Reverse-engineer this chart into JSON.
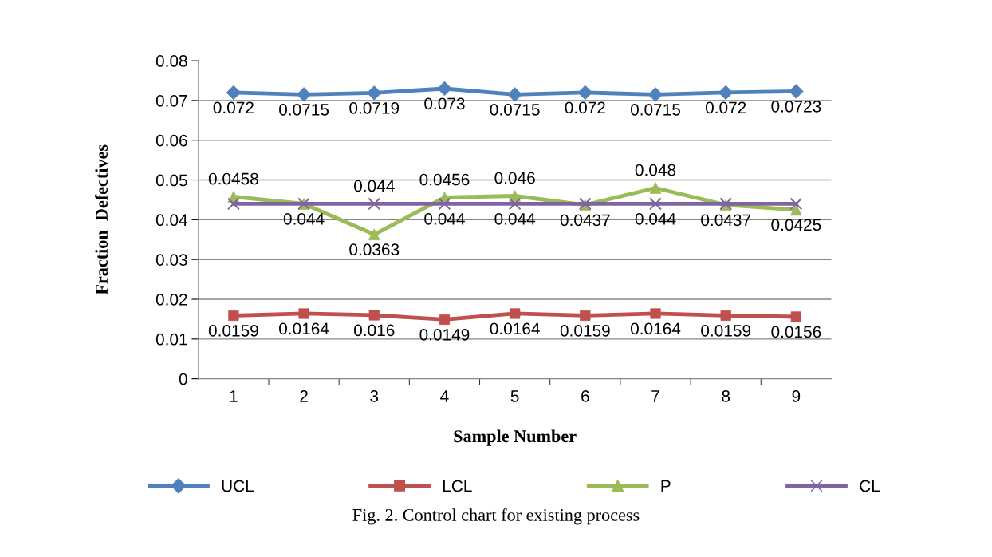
{
  "chart_data": {
    "type": "line",
    "xlabel": "Sample Number",
    "ylabel": "Fraction  Defectives",
    "categories": [
      "1",
      "2",
      "3",
      "4",
      "5",
      "6",
      "7",
      "8",
      "9"
    ],
    "ylim": [
      0,
      0.08
    ],
    "yticks": [
      0,
      0.01,
      0.02,
      0.03,
      0.04,
      0.05,
      0.06,
      0.07,
      0.08
    ],
    "grid": "y",
    "legend": "bottom",
    "series": [
      {
        "name": "UCL",
        "color": "#4f81bd",
        "marker": "diamond",
        "values": [
          0.072,
          0.0715,
          0.0719,
          0.073,
          0.0715,
          0.072,
          0.0715,
          0.072,
          0.0723
        ],
        "value_labels": [
          "0.072",
          "0.0715",
          "0.0719",
          "0.073",
          "0.0715",
          "0.072",
          "0.0715",
          "0.072",
          "0.0723"
        ]
      },
      {
        "name": "LCL",
        "color": "#c0504d",
        "marker": "square",
        "values": [
          0.0159,
          0.0164,
          0.016,
          0.0149,
          0.0164,
          0.0159,
          0.0164,
          0.0159,
          0.0156
        ],
        "value_labels": [
          "0.0159",
          "0.0164",
          "0.016",
          "0.0149",
          "0.0164",
          "0.0159",
          "0.0164",
          "0.0159",
          "0.0156"
        ]
      },
      {
        "name": "P",
        "color": "#9bbb59",
        "marker": "triangle",
        "values": [
          0.0458,
          0.044,
          0.0363,
          0.0456,
          0.046,
          0.0437,
          0.048,
          0.0437,
          0.0425
        ],
        "value_labels": [
          "0.0458",
          "0.044",
          "0.0363",
          "0.0456",
          "0.046",
          "0.0437",
          "0.048",
          "0.0437",
          "0.0425"
        ]
      },
      {
        "name": "CL",
        "color": "#8064a2",
        "marker": "cross",
        "values": [
          0.044,
          0.044,
          0.044,
          0.044,
          0.044,
          0.044,
          0.044,
          0.044,
          0.044
        ],
        "value_labels": [
          null,
          null,
          "0.044",
          "0.044",
          "0.044",
          null,
          "0.044",
          null,
          null
        ]
      }
    ],
    "annotations": [
      "Fig. 2. Control chart for existing process"
    ]
  }
}
